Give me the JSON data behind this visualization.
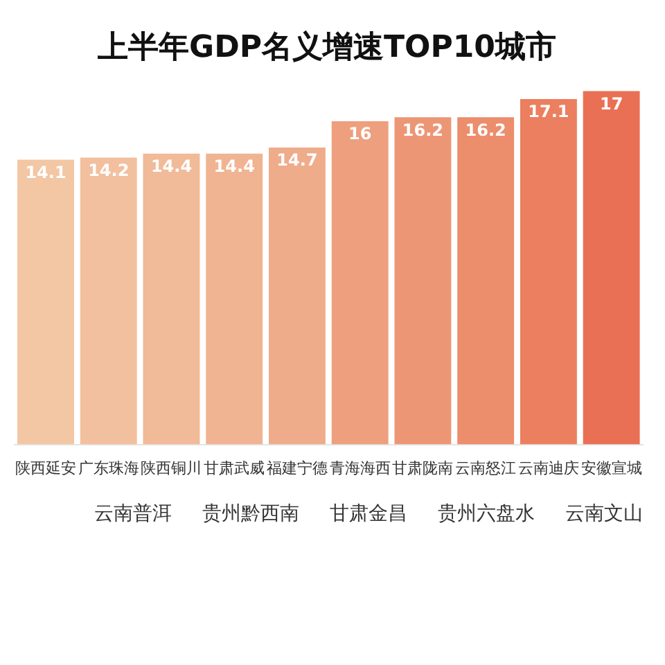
{
  "chart_data": [
    {
      "type": "bar",
      "title": "上半年GDP名义增速TOP10城市",
      "categories": [
        "陕西延安",
        "广东珠海",
        "陕西铜川",
        "甘肃武威",
        "福建宁德",
        "青海海西",
        "甘肃陇南",
        "云南怒江",
        "云南迪庆",
        "安徽宣城"
      ],
      "values": [
        14.1,
        14.2,
        14.4,
        14.4,
        14.7,
        16,
        16.2,
        16.2,
        17.1,
        17.5
      ],
      "value_labels": [
        "14.1",
        "14.2",
        "14.4",
        "14.4",
        "14.7",
        "16",
        "16.2",
        "16.2",
        "17.1",
        "17"
      ],
      "colors": [
        "#f3c6a4",
        "#f2c09e",
        "#f1ba98",
        "#f0b492",
        "#efac8b",
        "#ee9f7e",
        "#ed9675",
        "#ec8d6c",
        "#eb7f5f",
        "#ea7055"
      ]
    },
    {
      "type": "other",
      "categories": [
        "云南普洱",
        "贵州黔西南",
        "甘肃金昌",
        "贵州六盘水",
        "云南文山"
      ]
    }
  ]
}
